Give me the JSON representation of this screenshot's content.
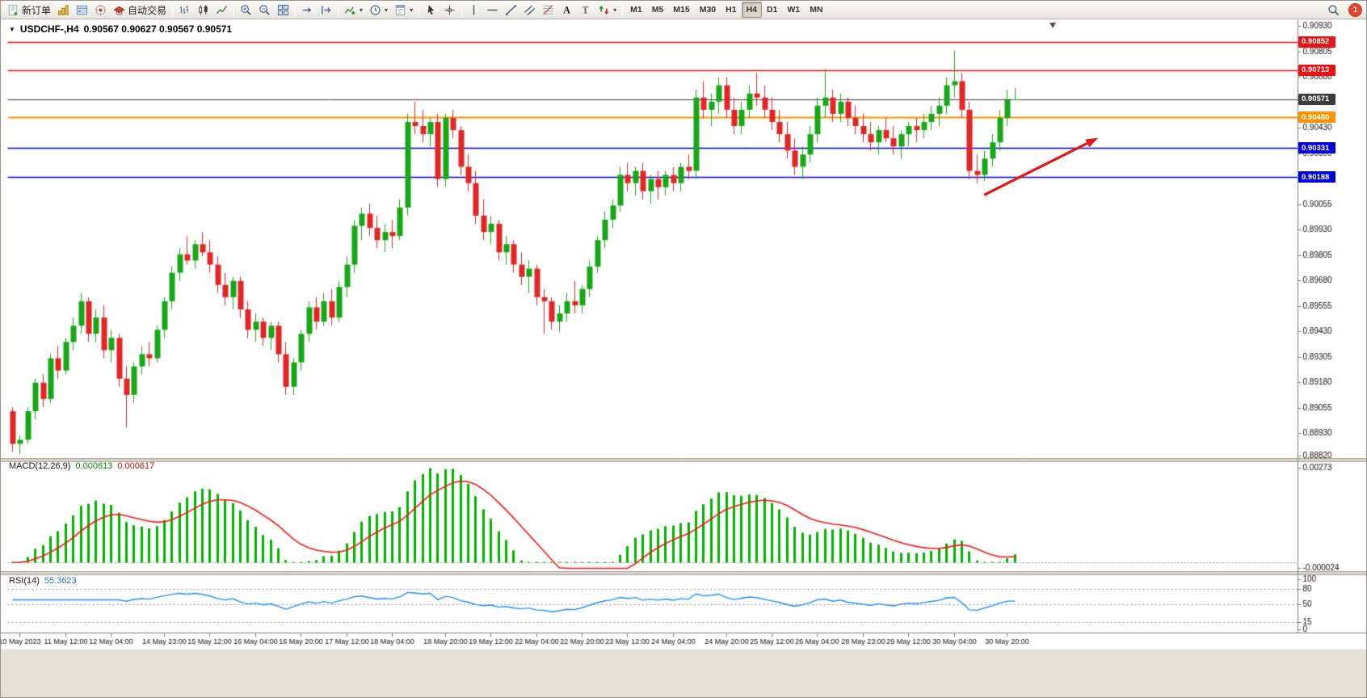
{
  "toolbar": {
    "groups": [
      {
        "items": [
          {
            "name": "new-order",
            "icon": "new-order",
            "label": "新订单"
          },
          {
            "name": "charts",
            "icon": "charts"
          },
          {
            "name": "navigator",
            "icon": "navigator"
          },
          {
            "name": "alerts",
            "icon": "alerts"
          },
          {
            "name": "auto-trading",
            "icon": "auto-trading",
            "label": "自动交易"
          }
        ]
      },
      {
        "items": [
          {
            "name": "bar-chart",
            "icon": "bars"
          },
          {
            "name": "candlestick-chart",
            "icon": "candles"
          },
          {
            "name": "line-chart",
            "icon": "line"
          }
        ]
      },
      {
        "items": [
          {
            "name": "zoom-in",
            "icon": "zoom-in"
          },
          {
            "name": "zoom-out",
            "icon": "zoom-out"
          },
          {
            "name": "tile-windows",
            "icon": "tile"
          }
        ]
      },
      {
        "items": [
          {
            "name": "auto-scroll",
            "icon": "scroll-end"
          },
          {
            "name": "chart-shift",
            "icon": "chart-shift"
          }
        ]
      },
      {
        "items": [
          {
            "name": "indicators",
            "icon": "indicators",
            "dropdown": true
          },
          {
            "name": "periods",
            "icon": "clock",
            "dropdown": true
          },
          {
            "name": "templates",
            "icon": "template",
            "dropdown": true
          }
        ]
      },
      {
        "items": [
          {
            "name": "cursor",
            "icon": "cursor"
          },
          {
            "name": "crosshair",
            "icon": "crosshair"
          }
        ]
      },
      {
        "items": [
          {
            "name": "vertical-line",
            "icon": "vline"
          },
          {
            "name": "horizontal-line",
            "icon": "hline"
          },
          {
            "name": "trendline",
            "icon": "trendline"
          },
          {
            "name": "equidistant-channel",
            "icon": "channel"
          },
          {
            "name": "fibonacci-retracement",
            "icon": "fibo"
          },
          {
            "name": "text",
            "icon": "text-a"
          },
          {
            "name": "text-label",
            "icon": "text-t"
          },
          {
            "name": "arrows",
            "icon": "arrows",
            "dropdown": true
          }
        ]
      }
    ],
    "timeframes": [
      {
        "label": "M1"
      },
      {
        "label": "M5"
      },
      {
        "label": "M15"
      },
      {
        "label": "M30"
      },
      {
        "label": "H1"
      },
      {
        "label": "H4",
        "active": true
      },
      {
        "label": "D1"
      },
      {
        "label": "W1"
      },
      {
        "label": "MN"
      }
    ],
    "notification_count": "1"
  },
  "chart": {
    "title_symbol": "USDCHF-,H4",
    "title_ohlc": "0.90567 0.90627 0.90567 0.90571",
    "colors": {
      "bull": "#17a817",
      "bear": "#e32525",
      "background": "#ffffff"
    }
  },
  "panels": {
    "macd": {
      "name": "MACD(12,26,9)",
      "value_main": "0.000613",
      "value_signal": "0.000617"
    },
    "rsi": {
      "name": "RSI(14)",
      "value": "55.3623"
    }
  },
  "chart_data": {
    "type": "candlestick",
    "symbol": "USDCHF",
    "timeframe": "H4",
    "ylim": [
      0.8882,
      0.9093
    ],
    "levels": [
      {
        "value": 0.90852,
        "label": "0.90852",
        "color": "#ee1111",
        "width": 1.5
      },
      {
        "value": 0.90713,
        "label": "0.90713",
        "color": "#ee1111",
        "width": 1.5
      },
      {
        "value": 0.90571,
        "label": "0.90571",
        "color": "#3c3c3c",
        "width": 1,
        "current": true
      },
      {
        "value": 0.9048,
        "label": "0.90480",
        "color": "#ff9400",
        "width": 2.2
      },
      {
        "value": 0.90331,
        "label": "0.90331",
        "color": "#0000d8",
        "width": 1.6
      },
      {
        "value": 0.90188,
        "label": "0.90188",
        "color": "#0000d8",
        "width": 1.6
      }
    ],
    "price_ticks": [
      "0.90930",
      "0.90805",
      "0.90680",
      "0.90555",
      "0.90430",
      "0.90305",
      "0.90180",
      "0.90055",
      "0.89930",
      "0.89805",
      "0.89680",
      "0.89555",
      "0.89430",
      "0.89305",
      "0.89180",
      "0.89055",
      "0.88930",
      "0.88820"
    ],
    "time_labels": [
      {
        "label": "10 May 2023",
        "index": 1
      },
      {
        "label": "11 May 12:00",
        "index": 7
      },
      {
        "label": "12 May 04:00",
        "index": 13
      },
      {
        "label": "14 May 23:00",
        "index": 20
      },
      {
        "label": "15 May 12:00",
        "index": 26
      },
      {
        "label": "16 May 04:00",
        "index": 32
      },
      {
        "label": "16 May 20:00",
        "index": 38
      },
      {
        "label": "17 May 12:00",
        "index": 44
      },
      {
        "label": "18 May 04:00",
        "index": 50
      },
      {
        "label": "18 May 20:00",
        "index": 57
      },
      {
        "label": "19 May 12:00",
        "index": 63
      },
      {
        "label": "22 May 04:00",
        "index": 69
      },
      {
        "label": "22 May 20:00",
        "index": 75
      },
      {
        "label": "23 May 12:00",
        "index": 81
      },
      {
        "label": "24 May 04:00",
        "index": 87
      },
      {
        "label": "24 May 20:00",
        "index": 94
      },
      {
        "label": "25 May 12:00",
        "index": 100
      },
      {
        "label": "26 May 04:00",
        "index": 106
      },
      {
        "label": "28 May 23:00",
        "index": 112
      },
      {
        "label": "29 May 12:00",
        "index": 118
      },
      {
        "label": "30 May 04:00",
        "index": 124
      },
      {
        "label": "30 May 20:00",
        "index": 131
      }
    ],
    "indicators": {
      "macd": {
        "fast": 12,
        "slow": 26,
        "signal": 9,
        "histogram_color": "#00b400",
        "signal_color": "#ff1414",
        "axis_labels": [
          "0.00273",
          "-0.000024"
        ],
        "last_values": [
          0.000613,
          0.000617
        ]
      },
      "rsi": {
        "period": 14,
        "line_color": "#1E90FF",
        "level_lines": [
          80,
          50,
          15
        ],
        "axis_labels": [
          "100",
          "80",
          "50",
          "15",
          "0"
        ],
        "last_value": 55.3623
      }
    },
    "annotations": {
      "trend_arrow": {
        "color": "#e81515",
        "from_index": 128,
        "from_price": 0.901,
        "to_index": 143,
        "to_price": 0.9038
      }
    },
    "ohlc": [
      [
        0.8904,
        0.8906,
        0.8884,
        0.8888
      ],
      [
        0.8888,
        0.8892,
        0.8883,
        0.889
      ],
      [
        0.889,
        0.8906,
        0.8888,
        0.8904
      ],
      [
        0.8904,
        0.892,
        0.89,
        0.8918
      ],
      [
        0.8918,
        0.8922,
        0.8906,
        0.891
      ],
      [
        0.891,
        0.8932,
        0.8908,
        0.893
      ],
      [
        0.893,
        0.8936,
        0.892,
        0.8924
      ],
      [
        0.8924,
        0.894,
        0.8922,
        0.8938
      ],
      [
        0.8938,
        0.895,
        0.8934,
        0.8946
      ],
      [
        0.8946,
        0.8962,
        0.8942,
        0.8958
      ],
      [
        0.8958,
        0.896,
        0.8938,
        0.8942
      ],
      [
        0.8942,
        0.8954,
        0.8938,
        0.895
      ],
      [
        0.895,
        0.8956,
        0.893,
        0.8934
      ],
      [
        0.8934,
        0.8944,
        0.8928,
        0.894
      ],
      [
        0.894,
        0.8942,
        0.8916,
        0.892
      ],
      [
        0.892,
        0.8926,
        0.8896,
        0.8912
      ],
      [
        0.8912,
        0.8928,
        0.8908,
        0.8926
      ],
      [
        0.8926,
        0.8936,
        0.8922,
        0.8932
      ],
      [
        0.8932,
        0.8938,
        0.8926,
        0.893
      ],
      [
        0.893,
        0.8946,
        0.8928,
        0.8944
      ],
      [
        0.8944,
        0.896,
        0.894,
        0.8958
      ],
      [
        0.8958,
        0.8975,
        0.8954,
        0.8972
      ],
      [
        0.8972,
        0.8984,
        0.8968,
        0.8981
      ],
      [
        0.8981,
        0.899,
        0.8976,
        0.8978
      ],
      [
        0.8978,
        0.8988,
        0.8974,
        0.8986
      ],
      [
        0.8986,
        0.8992,
        0.898,
        0.8982
      ],
      [
        0.8982,
        0.8988,
        0.8972,
        0.8976
      ],
      [
        0.8976,
        0.898,
        0.8962,
        0.8966
      ],
      [
        0.8966,
        0.8972,
        0.8956,
        0.896
      ],
      [
        0.896,
        0.897,
        0.8954,
        0.8968
      ],
      [
        0.8968,
        0.897,
        0.895,
        0.8954
      ],
      [
        0.8954,
        0.8958,
        0.894,
        0.8944
      ],
      [
        0.8944,
        0.8952,
        0.8938,
        0.8948
      ],
      [
        0.8948,
        0.895,
        0.8936,
        0.894
      ],
      [
        0.894,
        0.8948,
        0.8934,
        0.8946
      ],
      [
        0.8946,
        0.8948,
        0.8928,
        0.8932
      ],
      [
        0.8932,
        0.8938,
        0.8912,
        0.8916
      ],
      [
        0.8916,
        0.893,
        0.8912,
        0.8928
      ],
      [
        0.8928,
        0.8944,
        0.8924,
        0.8942
      ],
      [
        0.8942,
        0.8958,
        0.8938,
        0.8955
      ],
      [
        0.8955,
        0.896,
        0.8944,
        0.8948
      ],
      [
        0.8948,
        0.8962,
        0.8946,
        0.8958
      ],
      [
        0.8958,
        0.8964,
        0.8946,
        0.895
      ],
      [
        0.895,
        0.8968,
        0.8948,
        0.8965
      ],
      [
        0.8965,
        0.898,
        0.896,
        0.8976
      ],
      [
        0.8976,
        0.8998,
        0.8972,
        0.8995
      ],
      [
        0.8995,
        0.9004,
        0.8988,
        0.9001
      ],
      [
        0.9001,
        0.9006,
        0.899,
        0.8994
      ],
      [
        0.8994,
        0.9,
        0.8984,
        0.8988
      ],
      [
        0.8988,
        0.8996,
        0.8982,
        0.8992
      ],
      [
        0.8992,
        0.8998,
        0.8984,
        0.899
      ],
      [
        0.899,
        0.9008,
        0.8988,
        0.9004
      ],
      [
        0.9004,
        0.905,
        0.9,
        0.9046
      ],
      [
        0.9046,
        0.9056,
        0.904,
        0.9044
      ],
      [
        0.9044,
        0.9052,
        0.9036,
        0.904
      ],
      [
        0.904,
        0.9048,
        0.9034,
        0.9046
      ],
      [
        0.9046,
        0.905,
        0.9014,
        0.9018
      ],
      [
        0.9018,
        0.905,
        0.9014,
        0.9048
      ],
      [
        0.9048,
        0.9052,
        0.9038,
        0.9042
      ],
      [
        0.9042,
        0.9044,
        0.902,
        0.9024
      ],
      [
        0.9024,
        0.903,
        0.9012,
        0.9016
      ],
      [
        0.9016,
        0.9022,
        0.8996,
        0.9
      ],
      [
        0.9,
        0.9008,
        0.8988,
        0.8992
      ],
      [
        0.8992,
        0.9,
        0.8986,
        0.8996
      ],
      [
        0.8996,
        0.8998,
        0.8978,
        0.8982
      ],
      [
        0.8982,
        0.899,
        0.8976,
        0.8986
      ],
      [
        0.8986,
        0.8988,
        0.8972,
        0.8976
      ],
      [
        0.8976,
        0.8982,
        0.8966,
        0.897
      ],
      [
        0.897,
        0.8978,
        0.8962,
        0.8974
      ],
      [
        0.8974,
        0.8976,
        0.8956,
        0.896
      ],
      [
        0.896,
        0.8964,
        0.8942,
        0.8958
      ],
      [
        0.8958,
        0.896,
        0.8944,
        0.8948
      ],
      [
        0.8948,
        0.8956,
        0.8943,
        0.8952
      ],
      [
        0.8952,
        0.8962,
        0.8948,
        0.8958
      ],
      [
        0.8958,
        0.8968,
        0.8952,
        0.8956
      ],
      [
        0.8956,
        0.8966,
        0.8952,
        0.8964
      ],
      [
        0.8964,
        0.8978,
        0.896,
        0.8975
      ],
      [
        0.8975,
        0.899,
        0.8972,
        0.8988
      ],
      [
        0.8988,
        0.9002,
        0.8984,
        0.8998
      ],
      [
        0.8998,
        0.9008,
        0.8994,
        0.9005
      ],
      [
        0.9005,
        0.9024,
        0.9002,
        0.902
      ],
      [
        0.902,
        0.9026,
        0.9012,
        0.9016
      ],
      [
        0.9016,
        0.9024,
        0.901,
        0.9022
      ],
      [
        0.9022,
        0.9026,
        0.9008,
        0.9012
      ],
      [
        0.9012,
        0.902,
        0.9006,
        0.9018
      ],
      [
        0.9018,
        0.9022,
        0.9008,
        0.9014
      ],
      [
        0.9014,
        0.9022,
        0.901,
        0.902
      ],
      [
        0.902,
        0.9024,
        0.9012,
        0.9016
      ],
      [
        0.9016,
        0.9026,
        0.9012,
        0.9024
      ],
      [
        0.9024,
        0.903,
        0.9018,
        0.9022
      ],
      [
        0.9022,
        0.9062,
        0.9018,
        0.9058
      ],
      [
        0.9058,
        0.9066,
        0.9048,
        0.9052
      ],
      [
        0.9052,
        0.906,
        0.9044,
        0.9056
      ],
      [
        0.9056,
        0.9068,
        0.905,
        0.9064
      ],
      [
        0.9064,
        0.9068,
        0.9048,
        0.9052
      ],
      [
        0.9052,
        0.9058,
        0.904,
        0.9044
      ],
      [
        0.9044,
        0.9056,
        0.904,
        0.9052
      ],
      [
        0.9052,
        0.9064,
        0.9048,
        0.906
      ],
      [
        0.906,
        0.907,
        0.9054,
        0.9058
      ],
      [
        0.9058,
        0.9064,
        0.9048,
        0.9052
      ],
      [
        0.9052,
        0.9058,
        0.9042,
        0.9046
      ],
      [
        0.9046,
        0.9052,
        0.9036,
        0.904
      ],
      [
        0.904,
        0.9046,
        0.9028,
        0.9032
      ],
      [
        0.9032,
        0.9038,
        0.902,
        0.9024
      ],
      [
        0.9024,
        0.9034,
        0.9018,
        0.903
      ],
      [
        0.903,
        0.9044,
        0.9026,
        0.904
      ],
      [
        0.904,
        0.9058,
        0.9036,
        0.9054
      ],
      [
        0.9054,
        0.9072,
        0.9048,
        0.9058
      ],
      [
        0.9058,
        0.9062,
        0.9046,
        0.905
      ],
      [
        0.905,
        0.906,
        0.9046,
        0.9056
      ],
      [
        0.9056,
        0.9058,
        0.9044,
        0.9048
      ],
      [
        0.9048,
        0.9054,
        0.904,
        0.9044
      ],
      [
        0.9044,
        0.905,
        0.9036,
        0.904
      ],
      [
        0.904,
        0.9046,
        0.9032,
        0.9036
      ],
      [
        0.9036,
        0.9044,
        0.903,
        0.9042
      ],
      [
        0.9042,
        0.9048,
        0.9036,
        0.9038
      ],
      [
        0.9038,
        0.9044,
        0.903,
        0.9034
      ],
      [
        0.9034,
        0.9042,
        0.9028,
        0.904
      ],
      [
        0.904,
        0.9046,
        0.9034,
        0.9044
      ],
      [
        0.9044,
        0.9048,
        0.9036,
        0.9042
      ],
      [
        0.9042,
        0.905,
        0.9038,
        0.9046
      ],
      [
        0.9046,
        0.9054,
        0.9042,
        0.905
      ],
      [
        0.905,
        0.9058,
        0.9044,
        0.9054
      ],
      [
        0.9054,
        0.9068,
        0.905,
        0.9064
      ],
      [
        0.9064,
        0.9081,
        0.9058,
        0.9066
      ],
      [
        0.9066,
        0.907,
        0.9048,
        0.9052
      ],
      [
        0.9052,
        0.9056,
        0.9018,
        0.9022
      ],
      [
        0.9022,
        0.903,
        0.9016,
        0.902
      ],
      [
        0.902,
        0.9032,
        0.9017,
        0.9028
      ],
      [
        0.9028,
        0.904,
        0.9024,
        0.9036
      ],
      [
        0.9036,
        0.9052,
        0.9032,
        0.9048
      ],
      [
        0.9048,
        0.9062,
        0.9044,
        0.90567
      ],
      [
        0.90567,
        0.90627,
        0.90567,
        0.90571
      ]
    ]
  }
}
